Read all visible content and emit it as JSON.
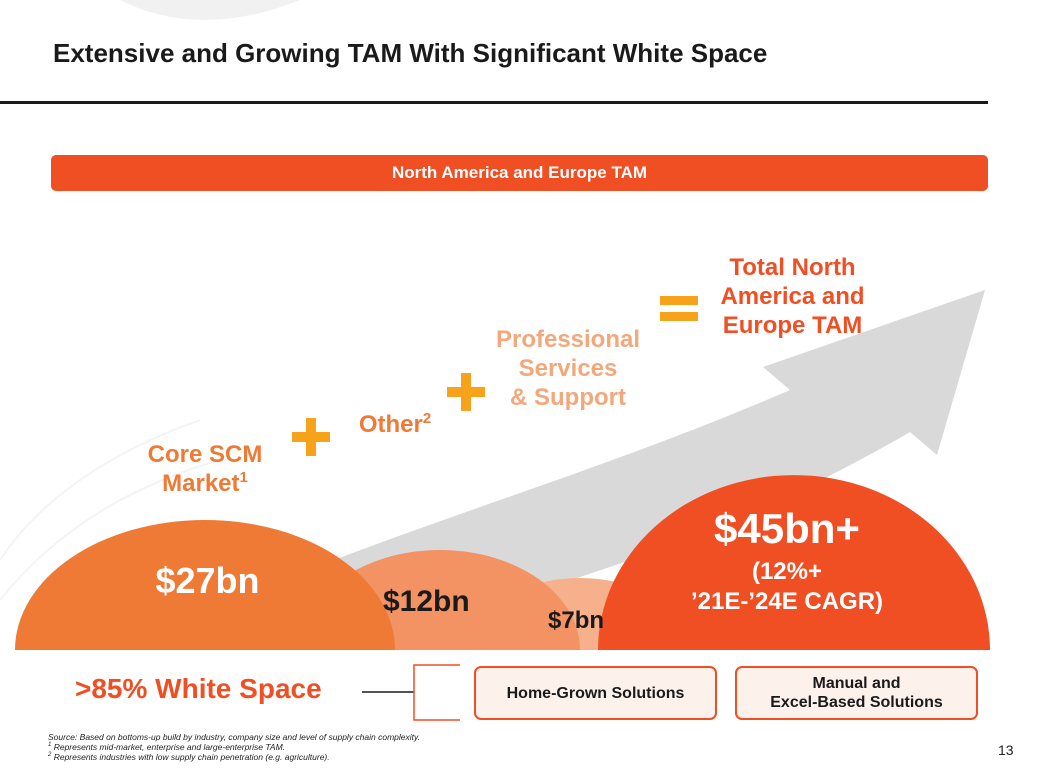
{
  "title": "Extensive and Growing TAM With Significant White Space",
  "banner": "North America and Europe TAM",
  "labels": {
    "core_scm": "Core SCM",
    "core_market": "Market",
    "core_sup": "1",
    "other": "Other",
    "other_sup": "2",
    "prof_line1": "Professional",
    "prof_line2": "Services",
    "prof_line3": "& Support",
    "total_line1": "Total North",
    "total_line2": "America and",
    "total_line3": "Europe TAM"
  },
  "values": {
    "core": "$27bn",
    "other": "$12bn",
    "prof": "$7bn",
    "total": "$45bn+",
    "cagr_line1": "(12%+",
    "cagr_line2": "’21E-’24E CAGR)"
  },
  "white_space": ">85% White Space",
  "solutions": {
    "home_grown": "Home-Grown Solutions",
    "manual_line1": "Manual and",
    "manual_line2": "Excel-Based Solutions"
  },
  "footnotes": {
    "source": "Source: Based on bottoms-up build by industry, company size and level of supply chain complexity.",
    "fn1_mark": "1",
    "fn1": " Represents mid-market, enterprise and large-enterprise TAM.",
    "fn2_mark": "2",
    "fn2": " Represents industries with low supply chain penetration (e.g. agriculture)."
  },
  "page_number": "13",
  "colors": {
    "accent_red": "#f04e23",
    "orange": "#ef7a35",
    "light_orange": "#f5a77c",
    "plus_yellow": "#f7a21b",
    "arrow_gray": "#d9d9d9"
  }
}
